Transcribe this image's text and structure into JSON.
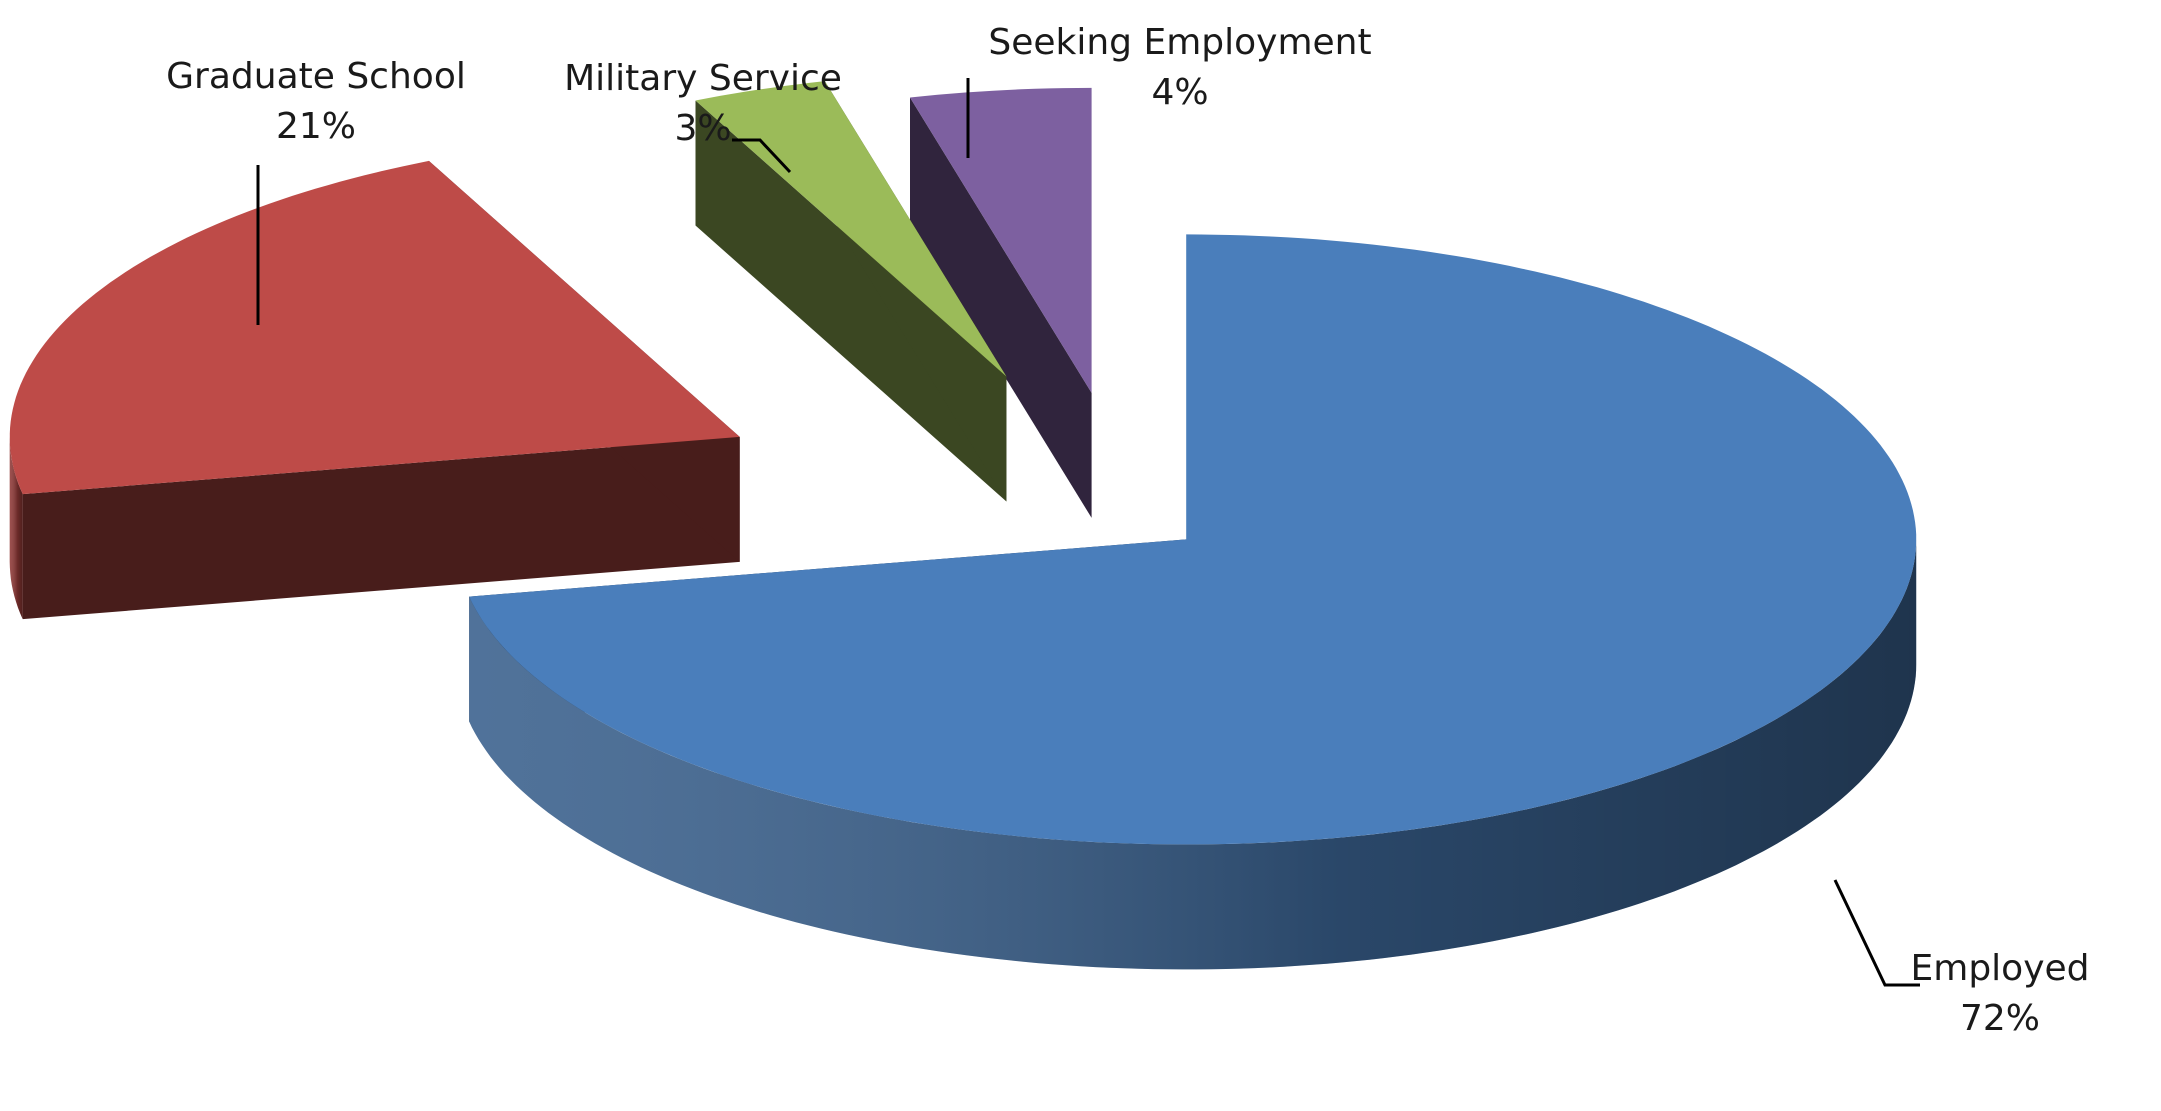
{
  "chart_data": {
    "type": "pie",
    "categories": [
      "Employed",
      "Graduate School",
      "Military Service",
      "Seeking Employment"
    ],
    "values": [
      72,
      21,
      3,
      4
    ],
    "value_labels": [
      "72%",
      "21%",
      "3%",
      "4%"
    ],
    "colors": [
      "#4a7ebb",
      "#be4b48",
      "#9bbb59",
      "#7d60a0"
    ]
  }
}
